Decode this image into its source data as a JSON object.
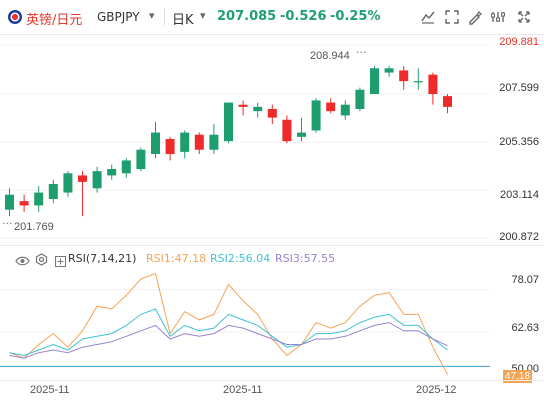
{
  "header": {
    "flag_icon": "gbp-jpy-flag-icon",
    "pair_name": "英镑/日元",
    "symbol": "GBPJPY",
    "period": "日K",
    "last_price": "207.085",
    "change": "-0.526",
    "change_pct": "-0.25%",
    "colors": {
      "pair": "#e5352b",
      "period": "#333333",
      "price": "#20a070"
    },
    "icons": [
      "draw-line-icon",
      "fullscreen-icon",
      "brush-icon",
      "settings-icon",
      "compare-icon"
    ]
  },
  "price_axis": {
    "labels": [
      "209.881",
      "207.599",
      "205.356",
      "203.114",
      "200.872"
    ],
    "label_colors": [
      "#e5352b",
      "#333333",
      "#333333",
      "#333333",
      "#333333"
    ]
  },
  "annotations": {
    "high": "208.944",
    "low": "201.769"
  },
  "rsi_panel": {
    "eye_icon": "eye-icon",
    "settings_icon": "settings-icon",
    "expand_icon": "expand-icon",
    "params": "RSI(7,14,21)",
    "rsi1": "RSI1:47.18",
    "rsi2": "RSI2:56.04",
    "rsi3": "RSI3:57.55",
    "axis_labels": [
      "78.07",
      "62.63",
      "50.00"
    ],
    "current_box": "47.18",
    "colors": {
      "rsi1": "#f5a454",
      "rsi2": "#3ec1d3",
      "rsi3": "#9b83d0"
    }
  },
  "x_axis": {
    "labels": [
      "2025-11",
      "2025-11",
      "2025-12"
    ]
  },
  "chart_data": [
    {
      "type": "candlestick",
      "y_axis_ticks": [
        209.881,
        207.599,
        205.356,
        203.114,
        200.872
      ],
      "ylim": [
        200.6,
        210.4
      ],
      "colors": {
        "up": "#1e9e6e",
        "down": "#ee2a2a"
      },
      "high_mark": 208.944,
      "low_mark": 201.769,
      "candles": [
        {
          "o": 202.2,
          "c": 202.9,
          "h": 203.2,
          "l": 201.9
        },
        {
          "o": 202.6,
          "c": 202.4,
          "h": 202.9,
          "l": 202.1
        },
        {
          "o": 202.4,
          "c": 203.0,
          "h": 203.3,
          "l": 202.1
        },
        {
          "o": 202.7,
          "c": 203.4,
          "h": 203.6,
          "l": 202.5
        },
        {
          "o": 203.0,
          "c": 203.9,
          "h": 204.0,
          "l": 202.8
        },
        {
          "o": 203.8,
          "c": 203.5,
          "h": 204.0,
          "l": 201.9
        },
        {
          "o": 203.2,
          "c": 204.0,
          "h": 204.2,
          "l": 203.0
        },
        {
          "o": 203.8,
          "c": 204.1,
          "h": 204.3,
          "l": 203.6
        },
        {
          "o": 203.9,
          "c": 204.5,
          "h": 204.6,
          "l": 203.7
        },
        {
          "o": 204.1,
          "c": 205.0,
          "h": 205.1,
          "l": 204.0
        },
        {
          "o": 204.8,
          "c": 205.8,
          "h": 206.3,
          "l": 204.6
        },
        {
          "o": 205.5,
          "c": 204.8,
          "h": 205.6,
          "l": 204.5
        },
        {
          "o": 204.9,
          "c": 205.8,
          "h": 205.9,
          "l": 204.6
        },
        {
          "o": 205.7,
          "c": 205.0,
          "h": 205.8,
          "l": 204.8
        },
        {
          "o": 205.0,
          "c": 205.7,
          "h": 206.2,
          "l": 204.8
        },
        {
          "o": 205.4,
          "c": 207.2,
          "h": 207.2,
          "l": 205.3
        },
        {
          "o": 207.1,
          "c": 207.0,
          "h": 207.3,
          "l": 206.6
        },
        {
          "o": 206.8,
          "c": 207.0,
          "h": 207.2,
          "l": 206.5
        },
        {
          "o": 206.9,
          "c": 206.5,
          "h": 207.1,
          "l": 206.2
        },
        {
          "o": 206.4,
          "c": 205.4,
          "h": 206.6,
          "l": 205.3
        },
        {
          "o": 205.6,
          "c": 205.8,
          "h": 206.5,
          "l": 205.4
        },
        {
          "o": 205.9,
          "c": 207.3,
          "h": 207.4,
          "l": 205.8
        },
        {
          "o": 207.2,
          "c": 206.8,
          "h": 207.4,
          "l": 206.7
        },
        {
          "o": 206.6,
          "c": 207.1,
          "h": 207.3,
          "l": 206.4
        },
        {
          "o": 206.9,
          "c": 207.8,
          "h": 207.9,
          "l": 206.8
        },
        {
          "o": 207.6,
          "c": 208.8,
          "h": 208.9,
          "l": 207.6
        },
        {
          "o": 208.6,
          "c": 208.8,
          "h": 208.9,
          "l": 208.4
        },
        {
          "o": 208.7,
          "c": 208.2,
          "h": 208.9,
          "l": 207.8
        },
        {
          "o": 208.2,
          "c": 208.2,
          "h": 208.8,
          "l": 207.8
        },
        {
          "o": 208.5,
          "c": 207.6,
          "h": 208.6,
          "l": 207.1
        },
        {
          "o": 207.5,
          "c": 207.0,
          "h": 207.6,
          "l": 206.7
        }
      ]
    },
    {
      "type": "line",
      "title": "RSI(7,14,21)",
      "ylim": [
        45,
        86
      ],
      "reference_line": 50.0,
      "series": [
        {
          "name": "RSI1",
          "values": [
            55,
            53,
            58,
            62,
            57,
            63,
            72,
            71,
            76,
            82,
            84,
            62,
            70,
            67,
            69,
            80,
            74,
            69,
            60,
            54,
            58,
            66,
            64,
            66,
            72,
            76,
            77,
            69,
            69,
            57,
            47
          ]
        },
        {
          "name": "RSI2",
          "values": [
            55,
            54,
            56,
            58,
            56,
            60,
            61,
            62,
            65,
            69,
            71,
            61,
            65,
            63,
            64,
            69,
            67,
            65,
            61,
            57,
            58,
            62,
            62,
            63,
            66,
            68,
            69,
            65,
            65,
            60,
            56
          ]
        },
        {
          "name": "RSI3",
          "values": [
            54,
            53,
            55,
            56,
            55,
            57,
            58,
            59,
            61,
            63,
            65,
            60,
            62,
            61,
            62,
            65,
            64,
            62,
            60,
            58,
            58,
            60,
            60,
            61,
            63,
            65,
            66,
            63,
            63,
            60,
            57.55
          ]
        }
      ]
    }
  ]
}
